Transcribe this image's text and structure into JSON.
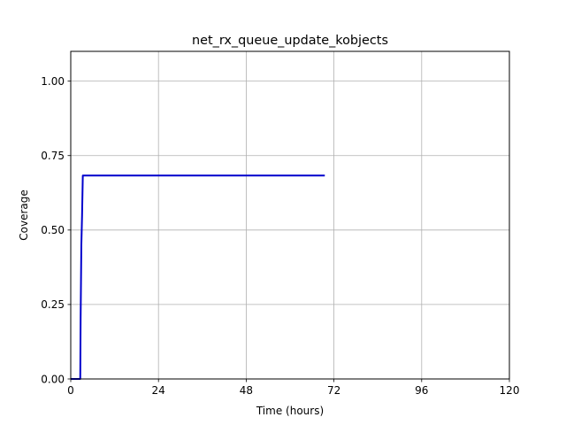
{
  "chart_data": {
    "type": "line",
    "title": "net_rx_queue_update_kobjects",
    "xlabel": "Time (hours)",
    "ylabel": "Coverage",
    "xlim": [
      0,
      120
    ],
    "ylim": [
      0,
      1.1
    ],
    "xticks": [
      0,
      24,
      48,
      72,
      96,
      120
    ],
    "xtick_labels": [
      "0",
      "24",
      "48",
      "72",
      "96",
      "120"
    ],
    "yticks": [
      0,
      0.25,
      0.5,
      0.75,
      1.0
    ],
    "ytick_labels": [
      "0.00",
      "0.25",
      "0.50",
      "0.75",
      "1.00"
    ],
    "grid": true,
    "series": [
      {
        "color": "#0000cc",
        "x": [
          0,
          2.6,
          2.7,
          2.9,
          3.1,
          3.3,
          69.5
        ],
        "y": [
          0,
          0,
          0.2,
          0.45,
          0.55,
          0.683,
          0.683
        ]
      }
    ]
  }
}
